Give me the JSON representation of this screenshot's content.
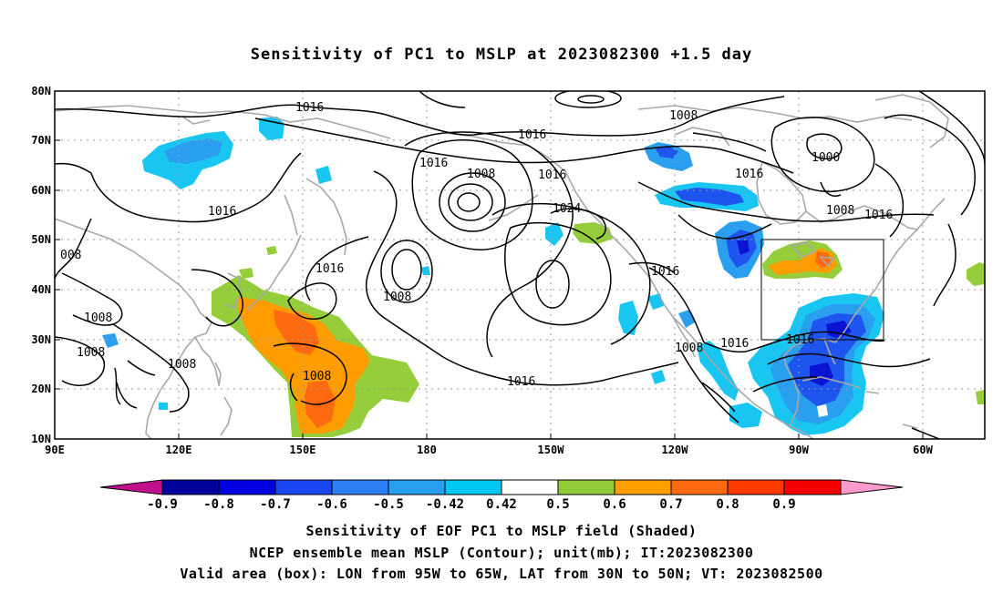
{
  "title": "Sensitivity of PC1 to MSLP at 2023082300 +1.5 day",
  "lat_labels": [
    "80N",
    "70N",
    "60N",
    "50N",
    "40N",
    "30N",
    "20N",
    "10N"
  ],
  "lon_labels": [
    "90E",
    "120E",
    "150E",
    "180",
    "150W",
    "120W",
    "90W",
    "60W"
  ],
  "isobar_labels": {
    "l1016a": "1016",
    "l1016b": "1016",
    "l1016c": "1016",
    "l1016d": "1016",
    "l1016e": "1016",
    "l1016f": "1016",
    "l1016g": "1016",
    "l1016h": "1016",
    "l1016i": "1016",
    "l1016j": "1016",
    "l1016k": "1016",
    "l1016l": "1016",
    "l1008a": "1008",
    "l1008b": "1008",
    "l1008c": "1008",
    "l1008d": "1008",
    "l1008e": "1008",
    "l1008f": "1008",
    "l1008g": "1008",
    "l1008h": "1008",
    "l1008i": "008",
    "l1024": "1024",
    "l1000": "1000"
  },
  "colorbar": {
    "labels": [
      "-0.9",
      "-0.8",
      "-0.7",
      "-0.6",
      "-0.5",
      "-0.42",
      "0.42",
      "0.5",
      "0.6",
      "0.7",
      "0.8",
      "0.9"
    ],
    "colors": [
      "#c0108c",
      "#00009a",
      "#0000e0",
      "#1846f0",
      "#2f7ff5",
      "#2a9ff0",
      "#00c8f5",
      "#ffffff",
      "#90cc38",
      "#ff9f00",
      "#ff6a10",
      "#ff3a00",
      "#f50000",
      "#ff9acd"
    ]
  },
  "shading_colors": {
    "green": "#96cd3a",
    "orange": "#ff9c00",
    "dark_orange": "#ff6a10",
    "cyan": "#19c6f2",
    "sky": "#2a9ff0",
    "blue": "#1f55ef",
    "navy": "#0a14d2"
  },
  "captions": {
    "line1": "Sensitivity of EOF PC1 to MSLP field (Shaded)",
    "line2": "NCEP ensemble mean MSLP (Contour); unit(mb); IT:2023082300",
    "line3": "Valid area (box): LON from 95W to 65W, LAT from 30N to 50N; VT: 2023082500"
  }
}
